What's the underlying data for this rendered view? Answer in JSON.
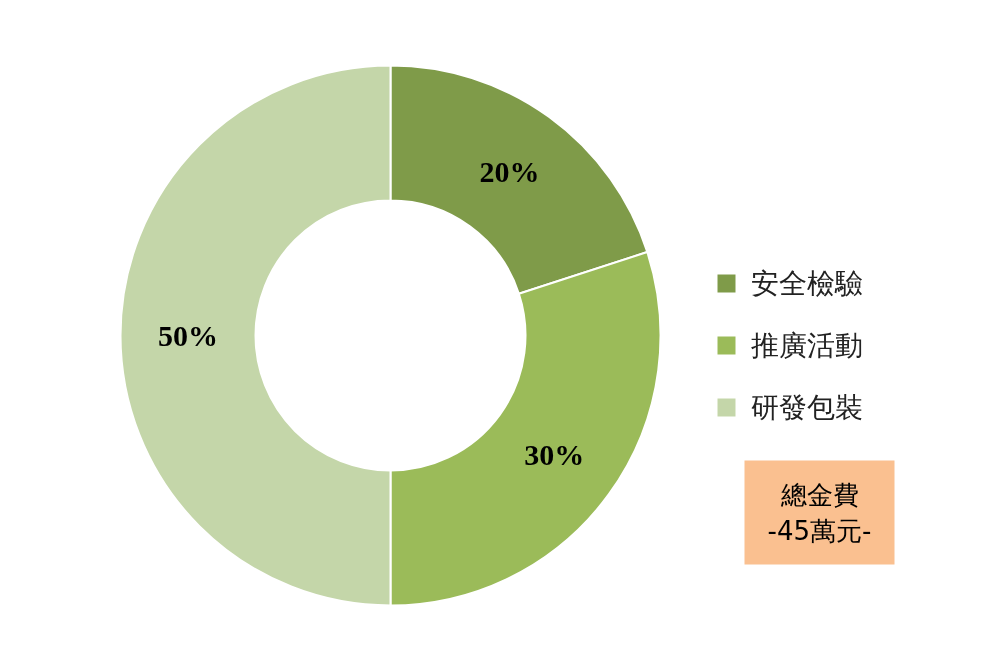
{
  "chart_data": {
    "type": "donut",
    "categories": [
      "安全檢驗",
      "推廣活動",
      "研發包裝"
    ],
    "values": [
      20,
      30,
      50
    ],
    "colors": [
      "#7f9b49",
      "#9bbb59",
      "#c4d6a9"
    ],
    "value_labels": [
      "20%",
      "30%",
      "50%"
    ],
    "legend": "right",
    "annotations": [
      "總金費",
      "-45萬元-"
    ]
  }
}
